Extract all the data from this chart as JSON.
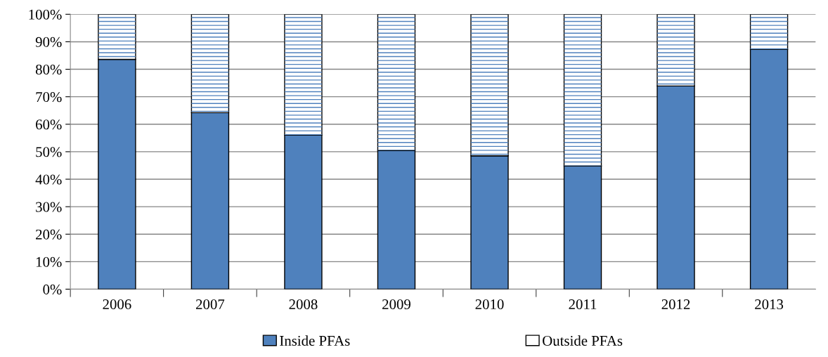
{
  "chart_data": {
    "type": "bar",
    "stacked": true,
    "categories": [
      "2006",
      "2007",
      "2008",
      "2009",
      "2010",
      "2011",
      "2012",
      "2013"
    ],
    "series": [
      {
        "name": "Inside PFAs",
        "color": "#4f81bd",
        "values": [
          83.6,
          64.2,
          56.0,
          50.5,
          48.5,
          44.8,
          73.9,
          87.2
        ]
      },
      {
        "name": "Outside PFAs",
        "color": "#ffffff",
        "values": [
          16.4,
          35.8,
          44.0,
          49.5,
          51.5,
          55.2,
          26.1,
          12.8
        ]
      }
    ],
    "ylim": [
      0,
      100
    ],
    "yticks": [
      {
        "value": 0,
        "label": "0%"
      },
      {
        "value": 10,
        "label": "10%"
      },
      {
        "value": 20,
        "label": "20%"
      },
      {
        "value": 30,
        "label": "30%"
      },
      {
        "value": 40,
        "label": "40%"
      },
      {
        "value": 50,
        "label": "50%"
      },
      {
        "value": 60,
        "label": "60%"
      },
      {
        "value": 70,
        "label": "70%"
      },
      {
        "value": 80,
        "label": "80%"
      },
      {
        "value": 90,
        "label": "90%"
      },
      {
        "value": 100,
        "label": "100%"
      }
    ],
    "grid": "y",
    "legend": "bottom"
  }
}
